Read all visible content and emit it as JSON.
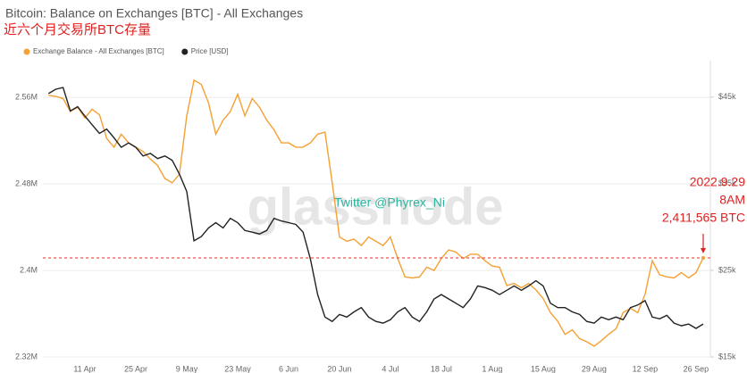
{
  "chart_data": {
    "type": "line",
    "title": "Bitcoin: Balance on Exchanges [BTC] - All Exchanges",
    "subtitle": "近六个月交易所BTC存量",
    "watermark": "glassnode",
    "credit": "Twitter @Phyrex_Ni",
    "annotations": [
      "2022.9.29",
      "8AM",
      "2,411,565 BTC"
    ],
    "categories": [
      null,
      null,
      null,
      null,
      null,
      "11 Apr",
      null,
      null,
      null,
      null,
      null,
      null,
      "25 Apr",
      null,
      null,
      null,
      null,
      null,
      null,
      "9 May",
      null,
      null,
      null,
      null,
      null,
      null,
      "23 May",
      null,
      null,
      null,
      null,
      null,
      null,
      "6 Jun",
      null,
      null,
      null,
      null,
      null,
      null,
      "20 Jun",
      null,
      null,
      null,
      null,
      null,
      null,
      "4 Jul",
      null,
      null,
      null,
      null,
      null,
      null,
      "18 Jul",
      null,
      null,
      null,
      null,
      null,
      null,
      "1 Aug",
      null,
      null,
      null,
      null,
      null,
      null,
      "15 Aug",
      null,
      null,
      null,
      null,
      null,
      null,
      "29 Aug",
      null,
      null,
      null,
      null,
      null,
      null,
      "12 Sep",
      null,
      null,
      null,
      null,
      null,
      null,
      "26 Sep",
      null
    ],
    "series": [
      {
        "name": "Exchange Balance - All Exchanges [BTC]",
        "color": "#f5a032",
        "axis": "y",
        "values": [
          2562000,
          2561000,
          2559000,
          2547000,
          2551000,
          2541000,
          2549000,
          2544000,
          2522000,
          2514000,
          2526000,
          2518000,
          2514000,
          2510000,
          2503000,
          2497000,
          2485000,
          2481000,
          2489000,
          2543000,
          2576000,
          2572000,
          2555000,
          2526000,
          2539000,
          2547000,
          2563000,
          2543000,
          2559000,
          2551000,
          2539000,
          2530000,
          2518000,
          2518000,
          2514000,
          2514000,
          2518000,
          2526000,
          2528000,
          2481000,
          2431000,
          2427000,
          2429000,
          2423000,
          2431000,
          2427000,
          2423000,
          2431000,
          2411000,
          2394000,
          2393000,
          2394000,
          2403000,
          2400000,
          2411000,
          2419000,
          2417000,
          2411000,
          2415000,
          2415000,
          2409000,
          2404000,
          2403000,
          2386000,
          2388000,
          2384000,
          2388000,
          2382000,
          2374000,
          2361000,
          2353000,
          2341000,
          2345000,
          2337000,
          2334000,
          2330000,
          2335000,
          2341000,
          2346000,
          2361000,
          2365000,
          2361000,
          2378000,
          2409000,
          2396000,
          2394000,
          2393000,
          2398000,
          2393000,
          2398000,
          2411565
        ]
      },
      {
        "name": "Price [USD]",
        "color": "#222222",
        "axis": "y2",
        "values": [
          45400,
          45900,
          46100,
          43400,
          43900,
          42800,
          41800,
          40800,
          41300,
          40300,
          39200,
          39700,
          39200,
          38200,
          38500,
          37900,
          38200,
          37700,
          36100,
          34100,
          28400,
          28900,
          29900,
          30500,
          29900,
          31000,
          30500,
          29600,
          29400,
          29200,
          29600,
          31000,
          30700,
          30500,
          30300,
          29400,
          26300,
          22200,
          19600,
          19100,
          19900,
          19600,
          20200,
          20700,
          19600,
          19100,
          18900,
          19300,
          20200,
          20700,
          19600,
          19100,
          20200,
          21700,
          22200,
          21700,
          21200,
          20700,
          21700,
          23200,
          23000,
          22700,
          22200,
          22700,
          23200,
          22700,
          23200,
          23800,
          23200,
          21200,
          20700,
          20700,
          20200,
          19900,
          19100,
          18900,
          19600,
          19300,
          19600,
          19300,
          20700,
          21000,
          21500,
          19600,
          19400,
          19800,
          18900,
          18600,
          18800,
          18300,
          18800
        ]
      }
    ],
    "ylim": [
      2320000,
      2594000
    ],
    "yticks": [
      {
        "value": 2320000,
        "label": "2.32M"
      },
      {
        "value": 2400000,
        "label": "2.4M"
      },
      {
        "value": 2480000,
        "label": "2.48M"
      },
      {
        "value": 2560000,
        "label": "2.56M"
      }
    ],
    "y2lim": [
      15000,
      49200
    ],
    "y2ticks": [
      {
        "value": 15000,
        "label": "$15k"
      },
      {
        "value": 25000,
        "label": "$25k"
      },
      {
        "value": 35000,
        "label": "$35k"
      },
      {
        "value": 45000,
        "label": "$45k"
      }
    ],
    "grid": true
  }
}
